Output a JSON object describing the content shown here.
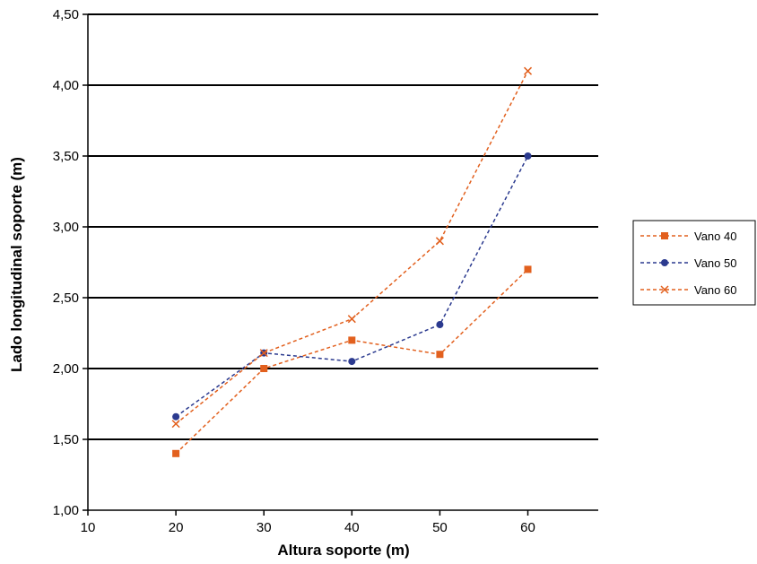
{
  "chart_data": {
    "type": "line",
    "xlabel": "Altura soporte (m)",
    "ylabel": "Lado longitudinal soporte (m)",
    "xlim": [
      10,
      68
    ],
    "ylim": [
      1.0,
      4.5
    ],
    "xticks": [
      10,
      20,
      30,
      40,
      50,
      60
    ],
    "xtick_labels": [
      "10",
      "20",
      "30",
      "40",
      "50",
      "60"
    ],
    "yticks": [
      1.0,
      1.5,
      2.0,
      2.5,
      3.0,
      3.5,
      4.0,
      4.5
    ],
    "ytick_labels": [
      "1,00",
      "1,50",
      "2,00",
      "2,50",
      "3,00",
      "3,50",
      "4,00",
      "4,50"
    ],
    "grid": "horizontal",
    "legend_position": "right",
    "series": [
      {
        "name": "Vano 40",
        "color": "#e2601e",
        "marker": "square",
        "x": [
          20,
          30,
          40,
          50,
          60
        ],
        "values": [
          1.4,
          2.0,
          2.2,
          2.1,
          2.7
        ]
      },
      {
        "name": "Vano 50",
        "color": "#2b3a8f",
        "marker": "circle",
        "x": [
          20,
          30,
          40,
          50,
          60
        ],
        "values": [
          1.66,
          2.11,
          2.05,
          2.31,
          3.5
        ]
      },
      {
        "name": "Vano 60",
        "color": "#e2601e",
        "marker": "x",
        "x": [
          20,
          30,
          40,
          50,
          60
        ],
        "values": [
          1.61,
          2.11,
          2.35,
          2.9,
          4.1
        ]
      }
    ]
  }
}
